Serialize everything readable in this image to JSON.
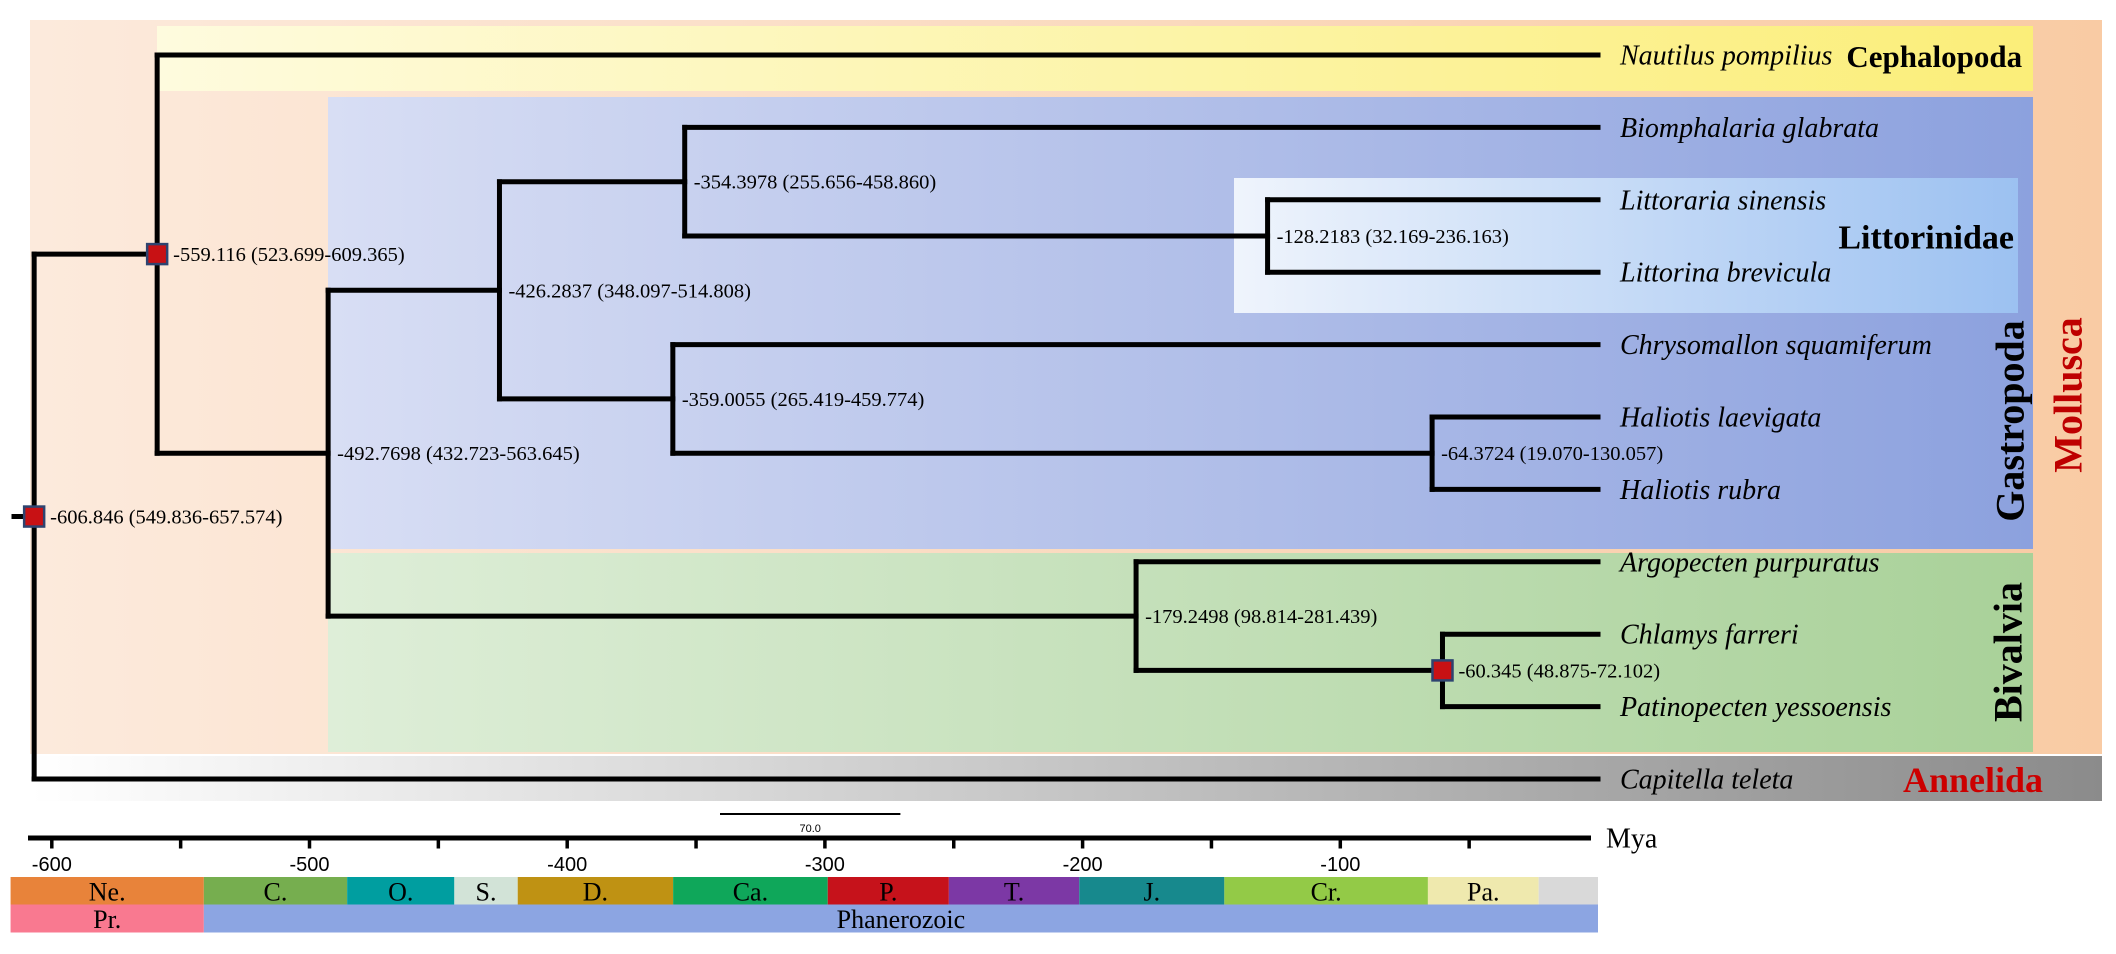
{
  "figure": {
    "axis": {
      "unit_label": "Mya",
      "major_ticks": [
        {
          "value": -600,
          "label": "-600"
        },
        {
          "value": -500,
          "label": "-500"
        },
        {
          "value": -400,
          "label": "-400"
        },
        {
          "value": -300,
          "label": "-300"
        },
        {
          "value": -200,
          "label": "-200"
        },
        {
          "value": -100,
          "label": "-100"
        }
      ],
      "minor_tick_step": 50
    },
    "scale_bar": {
      "label": "70.0",
      "length_mya": 70
    },
    "node_marker": {
      "fill": "#C81114",
      "stroke": "#2E4470"
    },
    "tree": {
      "tips": [
        {
          "name": "Nautilus pompilius",
          "inline_clade": "Cephalopoda",
          "inline_clade_color": "#000000"
        },
        {
          "name": "Biomphalaria glabrata"
        },
        {
          "name": "Littoraria sinensis"
        },
        {
          "name": "Littorina brevicula"
        },
        {
          "name": "Chrysomallon squamiferum"
        },
        {
          "name": "Haliotis laevigata"
        },
        {
          "name": "Haliotis rubra"
        },
        {
          "name": "Argopecten purpuratus"
        },
        {
          "name": "Chlamys farreri"
        },
        {
          "name": "Patinopecten yessoensis"
        },
        {
          "name": "Capitella teleta",
          "inline_clade": "Annelida",
          "inline_clade_color": "#CC0000"
        }
      ],
      "root": {
        "age": -606.846,
        "label": "-606.846 (549.836-657.574)",
        "calibrated": true,
        "children": [
          {
            "age": -559.116,
            "label": "-559.116 (523.699-609.365)",
            "calibrated": true,
            "children": [
              {
                "tip": 0
              },
              {
                "age": -492.7698,
                "label": "-492.7698 (432.723-563.645)",
                "children": [
                  {
                    "age": -426.2837,
                    "label": "-426.2837 (348.097-514.808)",
                    "children": [
                      {
                        "age": -354.3978,
                        "label": "-354.3978 (255.656-458.860)",
                        "children": [
                          {
                            "tip": 1
                          },
                          {
                            "age": -128.2183,
                            "label": "-128.2183 (32.169-236.163)",
                            "children": [
                              {
                                "tip": 2
                              },
                              {
                                "tip": 3
                              }
                            ]
                          }
                        ]
                      },
                      {
                        "age": -359.0055,
                        "label": "-359.0055 (265.419-459.774)",
                        "children": [
                          {
                            "tip": 4
                          },
                          {
                            "age": -64.3724,
                            "label": "-64.3724 (19.070-130.057)",
                            "children": [
                              {
                                "tip": 5
                              },
                              {
                                "tip": 6
                              }
                            ]
                          }
                        ]
                      }
                    ]
                  },
                  {
                    "age": -179.2498,
                    "label": "-179.2498 (98.814-281.439)",
                    "children": [
                      {
                        "tip": 7
                      },
                      {
                        "age": -60.345,
                        "label": "-60.345 (48.875-72.102)",
                        "calibrated": true,
                        "children": [
                          {
                            "tip": 8
                          },
                          {
                            "tip": 9
                          }
                        ]
                      }
                    ]
                  }
                ]
              }
            ]
          },
          {
            "tip": 10
          }
        ]
      }
    },
    "clade_bands": [
      {
        "id": "mollusca",
        "label": "Mollusca",
        "label_color": "#BE0000",
        "gradient": [
          "#FCEADC",
          "#F9CBA4"
        ]
      },
      {
        "id": "annelida",
        "label": "Annelida",
        "label_color": "#CC0000",
        "gradient": [
          "#FFFFFF",
          "#8B8B8B"
        ]
      },
      {
        "id": "cephalopoda",
        "label": "Cephalopoda",
        "label_color": "#000000",
        "gradient": [
          "#FEFBDE",
          "#FBEE79"
        ]
      },
      {
        "id": "gastropoda",
        "label": "Gastropoda",
        "label_color": "#000000",
        "gradient": [
          "#D8DEF4",
          "#8CA1DE"
        ]
      },
      {
        "id": "littorinidae",
        "label": "Littorinidae",
        "label_color": "#000000",
        "gradient": [
          "#EFF4FC",
          "#9CC1F1"
        ]
      },
      {
        "id": "bivalvia",
        "label": "Bivalvia",
        "label_color": "#000000",
        "gradient": [
          "#DEEED8",
          "#A9D199"
        ]
      }
    ],
    "geo_timescale": {
      "periods": [
        {
          "abbr": "Ne.",
          "start": -616,
          "end": -541,
          "color": "#E8833A"
        },
        {
          "abbr": "C.",
          "start": -541,
          "end": -485.4,
          "color": "#76AE4F"
        },
        {
          "abbr": "O.",
          "start": -485.4,
          "end": -443.8,
          "color": "#009EA0"
        },
        {
          "abbr": "S.",
          "start": -443.8,
          "end": -419.2,
          "color": "#D2E3D7"
        },
        {
          "abbr": "D.",
          "start": -419.2,
          "end": -358.9,
          "color": "#BF9213"
        },
        {
          "abbr": "Ca.",
          "start": -358.9,
          "end": -298.9,
          "color": "#0FA75A"
        },
        {
          "abbr": "P.",
          "start": -298.9,
          "end": -251.9,
          "color": "#C6121B"
        },
        {
          "abbr": "T.",
          "start": -251.9,
          "end": -201.3,
          "color": "#7C38A5"
        },
        {
          "abbr": "J.",
          "start": -201.3,
          "end": -145,
          "color": "#17898D"
        },
        {
          "abbr": "Cr.",
          "start": -145,
          "end": -66,
          "color": "#93CA47"
        },
        {
          "abbr": "Pa.",
          "start": -66,
          "end": -23.03,
          "color": "#EFE9AE"
        },
        {
          "abbr": "",
          "start": -23.03,
          "end": 0,
          "color": "#D9D9D9"
        }
      ],
      "eras": [
        {
          "abbr": "Pr.",
          "start": -616,
          "end": -541,
          "color": "#F97990"
        },
        {
          "abbr": "Phanerozoic",
          "start": -541,
          "end": 0,
          "color": "#8CA5E2"
        }
      ]
    }
  }
}
